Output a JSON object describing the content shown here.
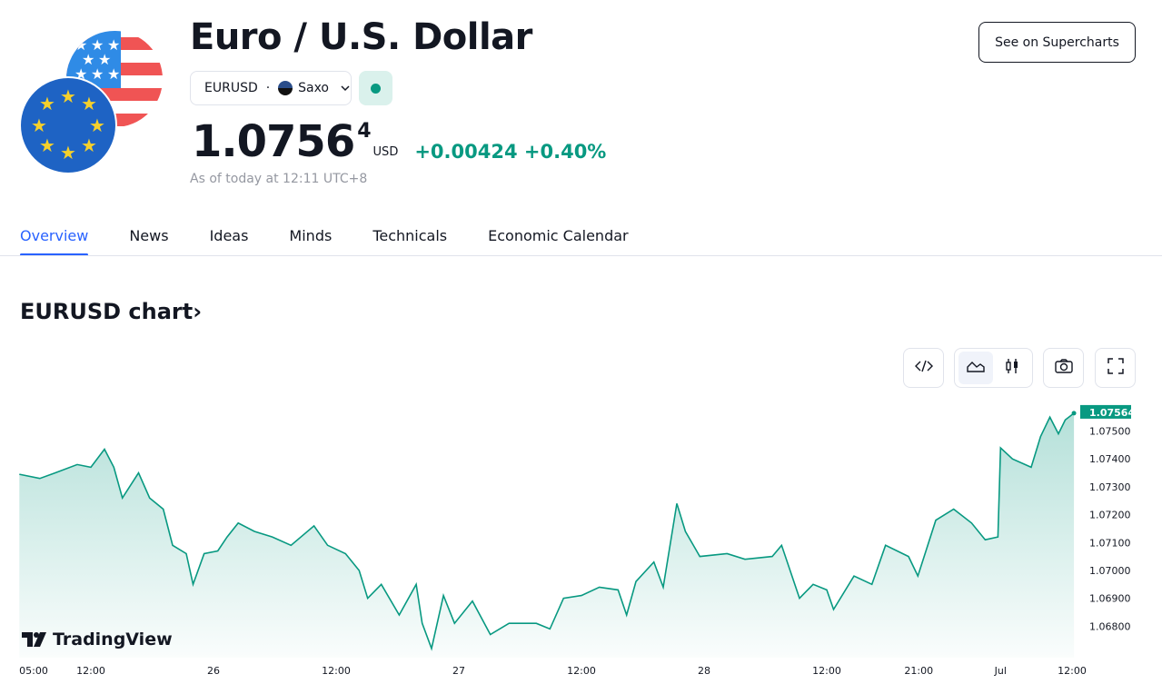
{
  "header": {
    "title": "Euro / U.S. Dollar",
    "symbol": "EURUSD",
    "separator": "·",
    "exchange": "Saxo",
    "market_status": "open",
    "price_main": "1.0756",
    "price_last_digit": "4",
    "currency": "USD",
    "change": "+0.00424",
    "change_percent": "+0.40%",
    "as_of": "As of today at 12:11 UTC+8",
    "supercharts_label": "See on Supercharts",
    "positive_color": "#089981"
  },
  "tabs": [
    {
      "label": "Overview",
      "active": true
    },
    {
      "label": "News"
    },
    {
      "label": "Ideas"
    },
    {
      "label": "Minds"
    },
    {
      "label": "Technicals"
    },
    {
      "label": "Economic Calendar"
    }
  ],
  "chart_section": {
    "title": "EURUSD chart",
    "chevron": "›",
    "toolbar": [
      "embed-code-icon",
      "area-chart-icon",
      "candlestick-icon",
      "camera-icon",
      "fullscreen-icon"
    ],
    "active_style": "area",
    "brand": "TradingView"
  },
  "chart_data": {
    "type": "area",
    "line_color": "#089981",
    "last_value_label": "1.07564",
    "ylim": [
      1.067,
      1.0758
    ],
    "y_ticks": [
      "1.07500",
      "1.07400",
      "1.07300",
      "1.07200",
      "1.07100",
      "1.07000",
      "1.06900",
      "1.06800"
    ],
    "x_ticks": [
      {
        "label": "05:00",
        "t": "Jun 25 05:00"
      },
      {
        "label": "12:00",
        "t": "Jun 25 12:00"
      },
      {
        "label": "26",
        "t": "Jun 26 00:00"
      },
      {
        "label": "12:00",
        "t": "Jun 26 12:00"
      },
      {
        "label": "27",
        "t": "Jun 27 00:00"
      },
      {
        "label": "12:00",
        "t": "Jun 27 12:00"
      },
      {
        "label": "28",
        "t": "Jun 28 00:00"
      },
      {
        "label": "12:00",
        "t": "Jun 28 12:00"
      },
      {
        "label": "21:00",
        "t": "Jun 28 21:00"
      },
      {
        "label": "Jul",
        "t": "Jul 1 05:00"
      },
      {
        "label": "12:00",
        "t": "Jul 1 12:00"
      }
    ],
    "points": [
      [
        "Jun 25 05:00",
        1.07345
      ],
      [
        "Jun 25 07:00",
        1.0733
      ],
      [
        "Jun 25 08:30",
        1.0735
      ],
      [
        "Jun 25 10:40",
        1.0738
      ],
      [
        "Jun 25 12:00",
        1.0737
      ],
      [
        "Jun 25 13:20",
        1.07435
      ],
      [
        "Jun 25 14:15",
        1.0737
      ],
      [
        "Jun 25 15:05",
        1.0726
      ],
      [
        "Jun 25 16:40",
        1.0735
      ],
      [
        "Jun 25 17:45",
        1.0726
      ],
      [
        "Jun 25 19:05",
        1.0722
      ],
      [
        "Jun 25 20:00",
        1.0709
      ],
      [
        "Jun 25 21:20",
        1.0706
      ],
      [
        "Jun 25 22:00",
        1.0695
      ],
      [
        "Jun 25 23:05",
        1.0706
      ],
      [
        "Jun 26 00:25",
        1.0707
      ],
      [
        "Jun 26 01:20",
        1.0712
      ],
      [
        "Jun 26 02:25",
        1.0717
      ],
      [
        "Jun 26 04:00",
        1.0714
      ],
      [
        "Jun 26 05:45",
        1.0712
      ],
      [
        "Jun 26 07:35",
        1.0709
      ],
      [
        "Jun 26 09:50",
        1.0716
      ],
      [
        "Jun 26 11:10",
        1.0709
      ],
      [
        "Jun 26 12:55",
        1.0706
      ],
      [
        "Jun 26 14:15",
        1.07
      ],
      [
        "Jun 26 15:05",
        1.069
      ],
      [
        "Jun 26 16:25",
        1.0695
      ],
      [
        "Jun 26 18:10",
        1.0684
      ],
      [
        "Jun 26 19:50",
        1.0695
      ],
      [
        "Jun 26 20:25",
        1.0681
      ],
      [
        "Jun 26 21:20",
        1.0672
      ],
      [
        "Jun 26 22:30",
        1.0691
      ],
      [
        "Jun 26 23:35",
        1.0681
      ],
      [
        "Jun 27 01:20",
        1.0689
      ],
      [
        "Jun 27 03:05",
        1.0677
      ],
      [
        "Jun 27 04:55",
        1.0681
      ],
      [
        "Jun 27 07:35",
        1.0681
      ],
      [
        "Jun 27 08:55",
        1.0679
      ],
      [
        "Jun 27 10:15",
        1.069
      ],
      [
        "Jun 27 12:00",
        1.0691
      ],
      [
        "Jun 27 13:45",
        1.0694
      ],
      [
        "Jun 27 15:35",
        1.0693
      ],
      [
        "Jun 27 16:25",
        1.0684
      ],
      [
        "Jun 27 17:20",
        1.0696
      ],
      [
        "Jun 27 19:05",
        1.0703
      ],
      [
        "Jun 27 20:00",
        1.0694
      ],
      [
        "Jun 27 21:20",
        1.0724
      ],
      [
        "Jun 27 22:10",
        1.0714
      ],
      [
        "Jun 27 23:35",
        1.0705
      ],
      [
        "Jun 28 02:15",
        1.0706
      ],
      [
        "Jun 28 04:00",
        1.0704
      ],
      [
        "Jun 28 06:40",
        1.0705
      ],
      [
        "Jun 28 07:35",
        1.0709
      ],
      [
        "Jun 28 09:20",
        1.069
      ],
      [
        "Jun 28 10:40",
        1.0695
      ],
      [
        "Jun 28 12:00",
        1.0693
      ],
      [
        "Jun 28 12:40",
        1.0686
      ],
      [
        "Jun 28 14:40",
        1.0698
      ],
      [
        "Jun 28 16:25",
        1.0695
      ],
      [
        "Jun 28 17:45",
        1.0709
      ],
      [
        "Jun 28 20:00",
        1.0705
      ],
      [
        "Jun 28 20:55",
        1.0698
      ],
      [
        "Jun 28 22:40",
        1.0718
      ],
      [
        "Jun 29 00:25",
        1.0722
      ],
      [
        "Jun 29 02:10",
        1.0717
      ],
      [
        "Jun 29 03:30",
        1.0711
      ],
      [
        "Jun 29 04:45",
        1.0712
      ],
      [
        "Jul 1 05:00",
        1.0744
      ],
      [
        "Jul 1 06:10",
        1.074
      ],
      [
        "Jul 1 08:00",
        1.0737
      ],
      [
        "Jul 1 08:55",
        1.0748
      ],
      [
        "Jul 1 09:50",
        1.0755
      ],
      [
        "Jul 1 10:40",
        1.0749
      ],
      [
        "Jul 1 11:20",
        1.0754
      ],
      [
        "Jul 1 12:11",
        1.07564
      ]
    ]
  }
}
